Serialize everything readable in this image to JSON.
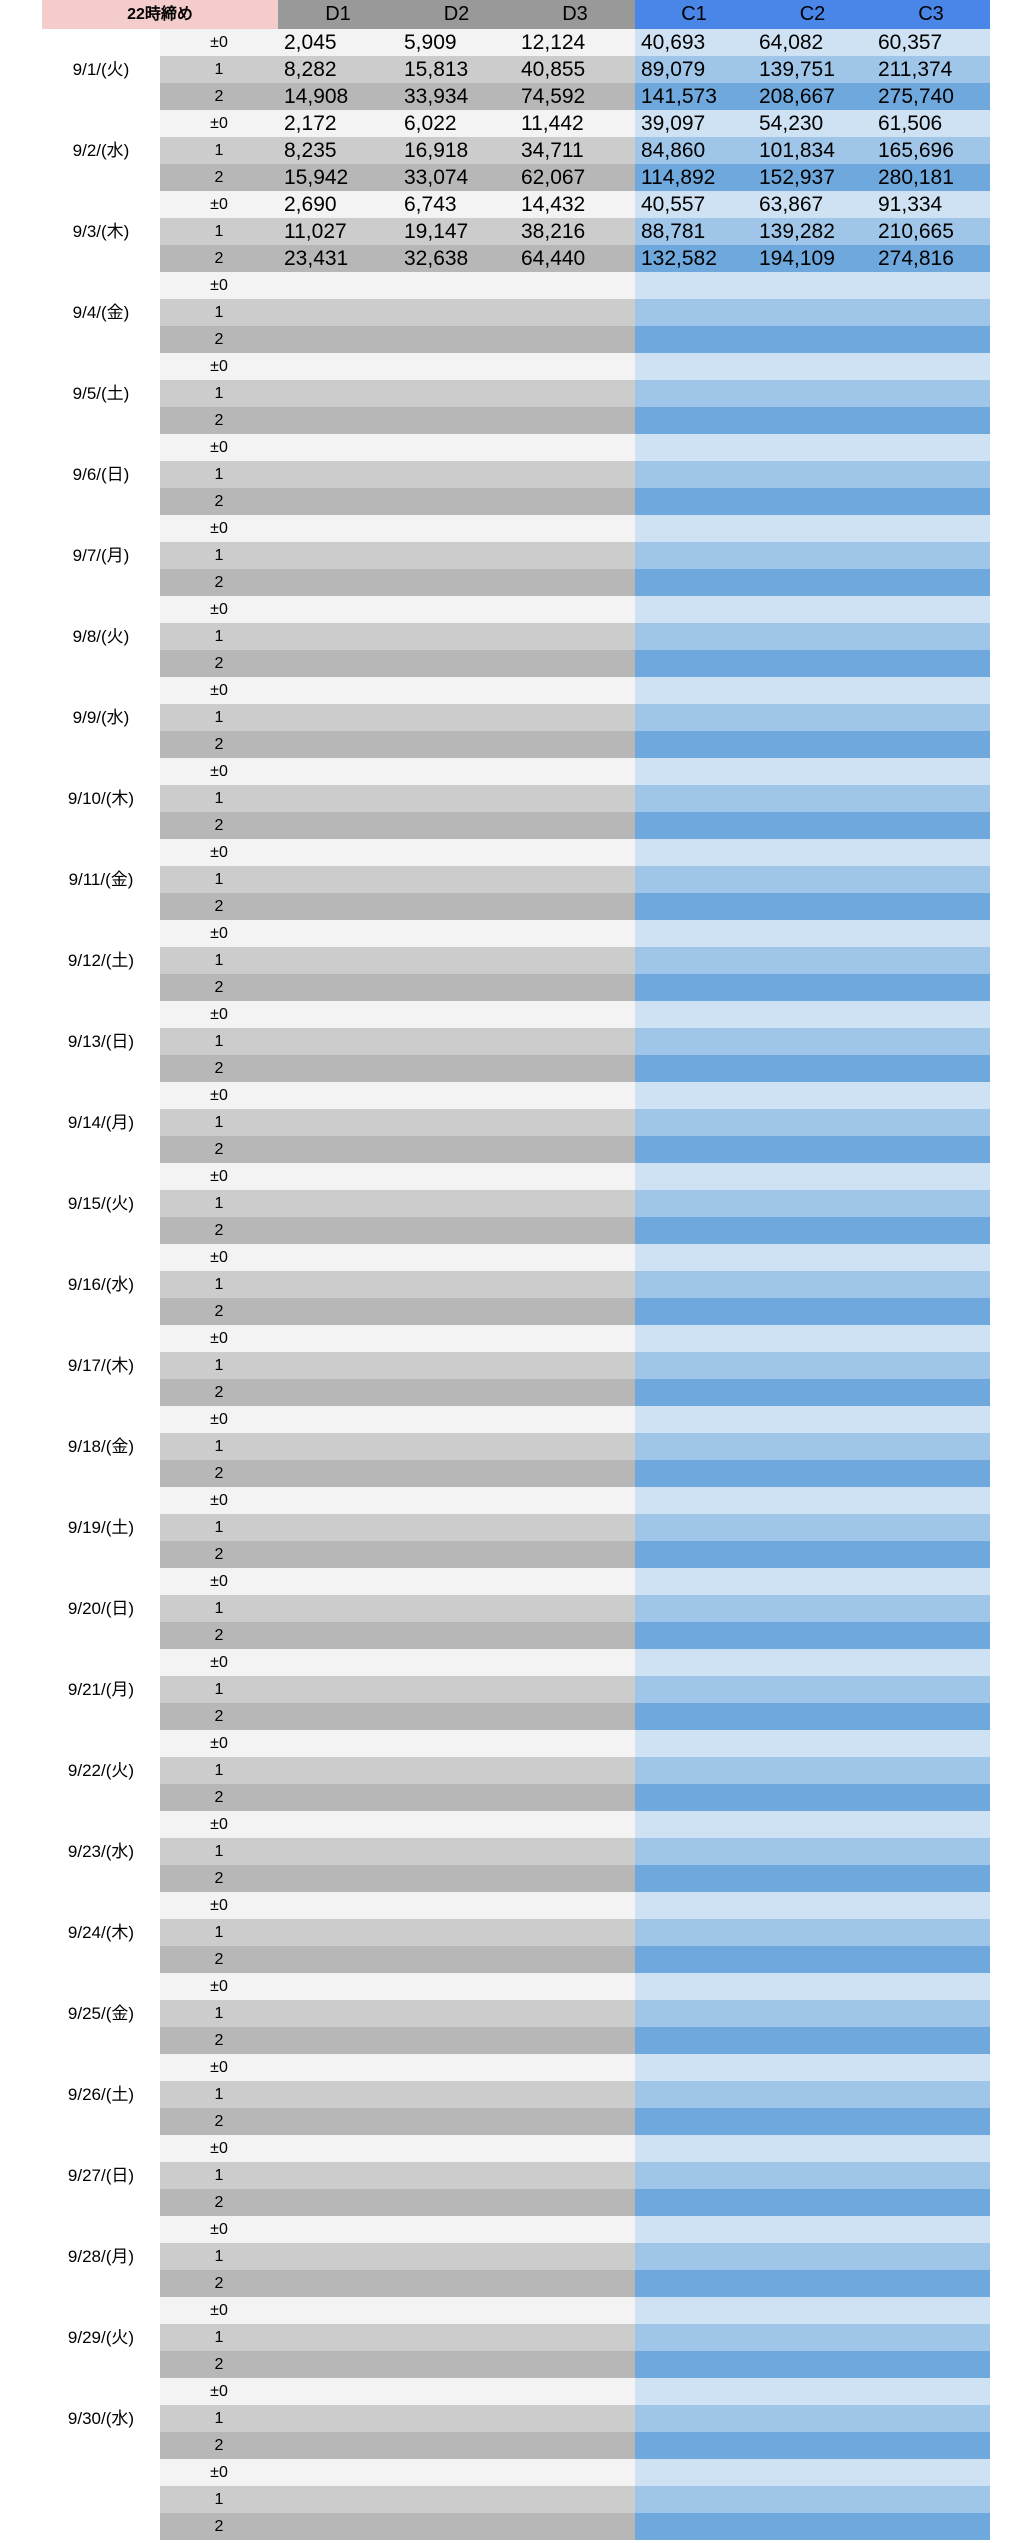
{
  "header": {
    "title": "22時締め",
    "columns": [
      "D1",
      "D2",
      "D3",
      "C1",
      "C2",
      "C3"
    ]
  },
  "groups": [
    {
      "date": "9/1/(火)",
      "rows": [
        {
          "label": "±0",
          "values": [
            "2,045",
            "5,909",
            "12,124",
            "40,693",
            "64,082",
            "60,357"
          ]
        },
        {
          "label": "1",
          "values": [
            "8,282",
            "15,813",
            "40,855",
            "89,079",
            "139,751",
            "211,374"
          ]
        },
        {
          "label": "2",
          "values": [
            "14,908",
            "33,934",
            "74,592",
            "141,573",
            "208,667",
            "275,740"
          ]
        }
      ]
    },
    {
      "date": "9/2/(水)",
      "rows": [
        {
          "label": "±0",
          "values": [
            "2,172",
            "6,022",
            "11,442",
            "39,097",
            "54,230",
            "61,506"
          ]
        },
        {
          "label": "1",
          "values": [
            "8,235",
            "16,918",
            "34,711",
            "84,860",
            "101,834",
            "165,696"
          ]
        },
        {
          "label": "2",
          "values": [
            "15,942",
            "33,074",
            "62,067",
            "114,892",
            "152,937",
            "280,181"
          ]
        }
      ]
    },
    {
      "date": "9/3/(木)",
      "rows": [
        {
          "label": "±0",
          "values": [
            "2,690",
            "6,743",
            "14,432",
            "40,557",
            "63,867",
            "91,334"
          ]
        },
        {
          "label": "1",
          "values": [
            "11,027",
            "19,147",
            "38,216",
            "88,781",
            "139,282",
            "210,665"
          ]
        },
        {
          "label": "2",
          "values": [
            "23,431",
            "32,638",
            "64,440",
            "132,582",
            "194,109",
            "274,816"
          ]
        }
      ]
    },
    {
      "date": "9/4/(金)",
      "rows": [
        {
          "label": "±0"
        },
        {
          "label": "1"
        },
        {
          "label": "2"
        }
      ]
    },
    {
      "date": "9/5/(土)",
      "rows": [
        {
          "label": "±0"
        },
        {
          "label": "1"
        },
        {
          "label": "2"
        }
      ]
    },
    {
      "date": "9/6/(日)",
      "rows": [
        {
          "label": "±0"
        },
        {
          "label": "1"
        },
        {
          "label": "2"
        }
      ]
    },
    {
      "date": "9/7/(月)",
      "rows": [
        {
          "label": "±0"
        },
        {
          "label": "1"
        },
        {
          "label": "2"
        }
      ]
    },
    {
      "date": "9/8/(火)",
      "rows": [
        {
          "label": "±0"
        },
        {
          "label": "1"
        },
        {
          "label": "2"
        }
      ]
    },
    {
      "date": "9/9/(水)",
      "rows": [
        {
          "label": "±0"
        },
        {
          "label": "1"
        },
        {
          "label": "2"
        }
      ]
    },
    {
      "date": "9/10/(木)",
      "rows": [
        {
          "label": "±0"
        },
        {
          "label": "1"
        },
        {
          "label": "2"
        }
      ]
    },
    {
      "date": "9/11/(金)",
      "rows": [
        {
          "label": "±0"
        },
        {
          "label": "1"
        },
        {
          "label": "2"
        }
      ]
    },
    {
      "date": "9/12/(土)",
      "rows": [
        {
          "label": "±0"
        },
        {
          "label": "1"
        },
        {
          "label": "2"
        }
      ]
    },
    {
      "date": "9/13/(日)",
      "rows": [
        {
          "label": "±0"
        },
        {
          "label": "1"
        },
        {
          "label": "2"
        }
      ]
    },
    {
      "date": "9/14/(月)",
      "rows": [
        {
          "label": "±0"
        },
        {
          "label": "1"
        },
        {
          "label": "2"
        }
      ]
    },
    {
      "date": "9/15/(火)",
      "rows": [
        {
          "label": "±0"
        },
        {
          "label": "1"
        },
        {
          "label": "2"
        }
      ]
    },
    {
      "date": "9/16/(水)",
      "rows": [
        {
          "label": "±0"
        },
        {
          "label": "1"
        },
        {
          "label": "2"
        }
      ]
    },
    {
      "date": "9/17/(木)",
      "rows": [
        {
          "label": "±0"
        },
        {
          "label": "1"
        },
        {
          "label": "2"
        }
      ]
    },
    {
      "date": "9/18/(金)",
      "rows": [
        {
          "label": "±0"
        },
        {
          "label": "1"
        },
        {
          "label": "2"
        }
      ]
    },
    {
      "date": "9/19/(土)",
      "rows": [
        {
          "label": "±0"
        },
        {
          "label": "1"
        },
        {
          "label": "2"
        }
      ]
    },
    {
      "date": "9/20/(日)",
      "rows": [
        {
          "label": "±0"
        },
        {
          "label": "1"
        },
        {
          "label": "2"
        }
      ]
    },
    {
      "date": "9/21/(月)",
      "rows": [
        {
          "label": "±0"
        },
        {
          "label": "1"
        },
        {
          "label": "2"
        }
      ]
    },
    {
      "date": "9/22/(火)",
      "rows": [
        {
          "label": "±0"
        },
        {
          "label": "1"
        },
        {
          "label": "2"
        }
      ]
    },
    {
      "date": "9/23/(水)",
      "rows": [
        {
          "label": "±0"
        },
        {
          "label": "1"
        },
        {
          "label": "2"
        }
      ]
    },
    {
      "date": "9/24/(木)",
      "rows": [
        {
          "label": "±0"
        },
        {
          "label": "1"
        },
        {
          "label": "2"
        }
      ]
    },
    {
      "date": "9/25/(金)",
      "rows": [
        {
          "label": "±0"
        },
        {
          "label": "1"
        },
        {
          "label": "2"
        }
      ]
    },
    {
      "date": "9/26/(土)",
      "rows": [
        {
          "label": "±0"
        },
        {
          "label": "1"
        },
        {
          "label": "2"
        }
      ]
    },
    {
      "date": "9/27/(日)",
      "rows": [
        {
          "label": "±0"
        },
        {
          "label": "1"
        },
        {
          "label": "2"
        }
      ]
    },
    {
      "date": "9/28/(月)",
      "rows": [
        {
          "label": "±0"
        },
        {
          "label": "1"
        },
        {
          "label": "2"
        }
      ]
    },
    {
      "date": "9/29/(火)",
      "rows": [
        {
          "label": "±0"
        },
        {
          "label": "1"
        },
        {
          "label": "2"
        }
      ]
    },
    {
      "date": "9/30/(水)",
      "rows": [
        {
          "label": "±0"
        },
        {
          "label": "1"
        },
        {
          "label": "2"
        }
      ]
    },
    {
      "rows": [
        {
          "label": "±0"
        },
        {
          "label": "1"
        },
        {
          "label": "2"
        }
      ]
    }
  ]
}
